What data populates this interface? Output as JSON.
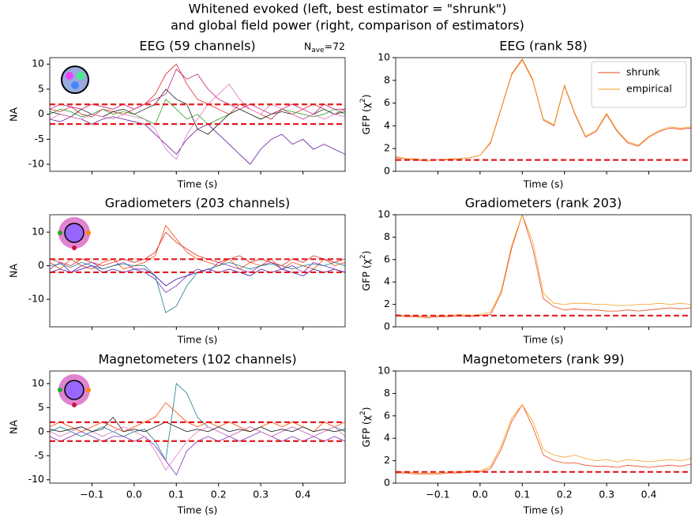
{
  "chart_data": [
    {
      "type": "line",
      "title": "EEG (59 channels)",
      "ylabel": "NA",
      "xlabel": "Time (s)",
      "annotation": {
        "symbol": "N",
        "subscript": "ave",
        "text": "=72"
      },
      "x": [
        -0.2,
        -0.175,
        -0.15,
        -0.125,
        -0.1,
        -0.075,
        -0.05,
        -0.025,
        0,
        0.025,
        0.05,
        0.075,
        0.1,
        0.125,
        0.15,
        0.175,
        0.2,
        0.225,
        0.25,
        0.275,
        0.3,
        0.325,
        0.35,
        0.375,
        0.4,
        0.425,
        0.45,
        0.475,
        0.5
      ],
      "xlim": [
        -0.2,
        0.5
      ],
      "xticks": [
        -0.1,
        0,
        0.1,
        0.2,
        0.3,
        0.4
      ],
      "ylim": [
        -11.4,
        11.3
      ],
      "yticks": [
        -10,
        -5,
        0,
        5,
        10
      ],
      "hlines": [
        1.96,
        -1.96
      ],
      "series": [
        {
          "color": "#d62728",
          "values": [
            1,
            0.5,
            1.5,
            0,
            -0.5,
            1,
            0.5,
            0,
            1,
            2,
            4,
            8,
            10,
            6,
            3,
            2,
            1,
            0,
            2,
            1,
            0,
            -1,
            1,
            0,
            1,
            2,
            1,
            0,
            1
          ]
        },
        {
          "color": "#6a1b9a",
          "values": [
            -1,
            -1.5,
            -0.5,
            -1,
            -2,
            -1,
            -0.5,
            -1,
            -1.5,
            -2,
            -4,
            -6,
            -8,
            -5,
            -3,
            -2,
            -4,
            -6,
            -8,
            -10,
            -7,
            -5,
            -4,
            -6,
            -5,
            -7,
            -6,
            -7,
            -8
          ]
        },
        {
          "color": "#2ca02c",
          "values": [
            0,
            1,
            0.5,
            -0.5,
            0,
            1,
            0,
            0.5,
            0,
            -1,
            -2,
            3,
            1,
            -1,
            0,
            -2,
            -1,
            0,
            1,
            0,
            -1,
            0,
            1,
            0.5,
            0,
            -0.5,
            0,
            1,
            0
          ]
        },
        {
          "color": "#222222",
          "values": [
            0.5,
            0,
            -0.5,
            1,
            0,
            -0.5,
            0.5,
            1,
            0,
            1,
            2,
            5,
            3,
            2,
            -3,
            -4,
            -2,
            0,
            1,
            0,
            -1,
            0,
            0.5,
            0,
            -1,
            0,
            1,
            0,
            0.5
          ]
        },
        {
          "color": "#e377c2",
          "values": [
            -1,
            0,
            -0.5,
            -1,
            0,
            -0.5,
            -1,
            0,
            -0.5,
            -1,
            -3,
            -7,
            -9,
            -4,
            -1,
            2,
            4,
            6,
            3,
            1,
            0,
            2,
            1,
            0,
            -1,
            0,
            -1,
            0,
            -0.5
          ]
        },
        {
          "color": "#c51b7d",
          "values": [
            1,
            2,
            1.5,
            1,
            2,
            1.5,
            1,
            2,
            1,
            2,
            3,
            4,
            9,
            7,
            8,
            5,
            3,
            2,
            1,
            2,
            1,
            0,
            1,
            2,
            1,
            0,
            2,
            1,
            1
          ]
        }
      ]
    },
    {
      "type": "line",
      "title": "EEG (rank 58)",
      "ylabel": {
        "text": "GFP (χ",
        "sup": "2",
        "end": ")"
      },
      "xlabel": "Time (s)",
      "legend": "upper right",
      "x": [
        -0.2,
        -0.175,
        -0.15,
        -0.125,
        -0.1,
        -0.075,
        -0.05,
        -0.025,
        0,
        0.025,
        0.05,
        0.075,
        0.1,
        0.125,
        0.15,
        0.175,
        0.2,
        0.225,
        0.25,
        0.275,
        0.3,
        0.325,
        0.35,
        0.375,
        0.4,
        0.425,
        0.45,
        0.475,
        0.5
      ],
      "xlim": [
        -0.2,
        0.5
      ],
      "xticks": [
        -0.1,
        0,
        0.1,
        0.2,
        0.3,
        0.4
      ],
      "ylim": [
        0,
        10
      ],
      "yticks": [
        0,
        2,
        4,
        6,
        8,
        10
      ],
      "hlines": [
        1
      ],
      "series": [
        {
          "name": "shrunk",
          "color": "#e8481c",
          "values": [
            1.2,
            1.1,
            1.0,
            0.9,
            1.0,
            1.0,
            1.1,
            1.2,
            1.4,
            2.5,
            5.5,
            8.5,
            9.8,
            8.0,
            4.5,
            4.0,
            7.5,
            5.0,
            3.0,
            3.5,
            5.0,
            3.5,
            2.5,
            2.2,
            3.0,
            3.5,
            3.8,
            3.7,
            3.8
          ]
        },
        {
          "name": "empirical",
          "color": "#f5a021",
          "values": [
            1.3,
            1.1,
            1.1,
            0.9,
            1.0,
            1.1,
            1.1,
            1.2,
            1.4,
            2.6,
            5.6,
            8.6,
            9.9,
            8.1,
            4.6,
            4.1,
            7.6,
            5.1,
            3.1,
            3.6,
            5.1,
            3.6,
            2.6,
            2.3,
            3.1,
            3.6,
            3.9,
            3.8,
            3.9
          ]
        }
      ]
    },
    {
      "type": "line",
      "title": "Gradiometers (203 channels)",
      "ylabel": "NA",
      "xlabel": "Time (s)",
      "x": [
        -0.2,
        -0.175,
        -0.15,
        -0.125,
        -0.1,
        -0.075,
        -0.05,
        -0.025,
        0,
        0.025,
        0.05,
        0.075,
        0.1,
        0.125,
        0.15,
        0.175,
        0.2,
        0.225,
        0.25,
        0.275,
        0.3,
        0.325,
        0.35,
        0.375,
        0.4,
        0.425,
        0.45,
        0.475,
        0.5
      ],
      "xlim": [
        -0.2,
        0.5
      ],
      "xticks": [
        -0.1,
        0,
        0.1,
        0.2,
        0.3,
        0.4
      ],
      "ylim": [
        -18.2,
        15.2
      ],
      "yticks": [
        -10,
        0,
        10
      ],
      "hlines": [
        1.96,
        -1.96
      ],
      "series": [
        {
          "color": "#ff4500",
          "values": [
            1,
            -1,
            2,
            0,
            -1,
            1,
            2,
            -1,
            0,
            1,
            3,
            12,
            8,
            4,
            2,
            1,
            0,
            2,
            -1,
            1,
            0,
            2,
            -1,
            1,
            0,
            -1,
            2,
            0,
            1
          ]
        },
        {
          "color": "#7b2cbf",
          "values": [
            -1,
            1,
            -2,
            0,
            1,
            -1,
            0,
            1,
            -1,
            -2,
            -4,
            -8,
            -6,
            -3,
            -1,
            -2,
            1,
            0,
            -1,
            -2,
            0,
            1,
            -1,
            0,
            -2,
            1,
            0,
            -1,
            -2
          ]
        },
        {
          "color": "#1b7c8b",
          "values": [
            0,
            0.5,
            -0.5,
            1,
            0,
            -1,
            0,
            0.5,
            0,
            0,
            -3,
            -14,
            -12,
            -6,
            -2,
            -1,
            0,
            1,
            0,
            -1,
            0,
            0.5,
            0,
            -1,
            0,
            0.5,
            0,
            1,
            0
          ]
        },
        {
          "color": "#d62728",
          "values": [
            2,
            1,
            0,
            2,
            1,
            0,
            1,
            2,
            1,
            2,
            4,
            10,
            7,
            5,
            3,
            2,
            1,
            2,
            3,
            1,
            2,
            1,
            0,
            2,
            1,
            3,
            2,
            1,
            2
          ]
        },
        {
          "color": "#3a0ca3",
          "values": [
            -2,
            -1,
            -2,
            -1,
            0,
            -2,
            -1,
            -2,
            -1,
            -1,
            -3,
            -6,
            -4,
            -3,
            -2,
            -1,
            -2,
            -1,
            -2,
            -3,
            -1,
            -2,
            -1,
            -2,
            -3,
            -1,
            -2,
            -1,
            -2
          ]
        }
      ]
    },
    {
      "type": "line",
      "title": "Gradiometers (rank 203)",
      "ylabel": {
        "text": "GFP (χ",
        "sup": "2",
        "end": ")"
      },
      "xlabel": "Time (s)",
      "x": [
        -0.2,
        -0.175,
        -0.15,
        -0.125,
        -0.1,
        -0.075,
        -0.05,
        -0.025,
        0,
        0.025,
        0.05,
        0.075,
        0.1,
        0.125,
        0.15,
        0.175,
        0.2,
        0.225,
        0.25,
        0.275,
        0.3,
        0.325,
        0.35,
        0.375,
        0.4,
        0.425,
        0.45,
        0.475,
        0.5
      ],
      "xlim": [
        -0.2,
        0.5
      ],
      "xticks": [
        -0.1,
        0,
        0.1,
        0.2,
        0.3,
        0.4
      ],
      "ylim": [
        0,
        10
      ],
      "yticks": [
        0,
        2,
        4,
        6,
        8,
        10
      ],
      "hlines": [
        1
      ],
      "series": [
        {
          "name": "shrunk",
          "color": "#e8481c",
          "values": [
            1.0,
            0.9,
            0.9,
            0.8,
            0.9,
            0.9,
            1.0,
            0.9,
            1.0,
            1.1,
            3.0,
            7.0,
            10.0,
            7.0,
            2.5,
            1.8,
            1.5,
            1.6,
            1.5,
            1.5,
            1.4,
            1.4,
            1.5,
            1.4,
            1.5,
            1.6,
            1.7,
            1.6,
            1.7
          ]
        },
        {
          "name": "empirical",
          "color": "#f5a021",
          "values": [
            1.1,
            1.0,
            1.0,
            0.9,
            1.0,
            1.0,
            1.1,
            1.0,
            1.1,
            1.3,
            3.2,
            7.3,
            10.0,
            7.6,
            3.0,
            2.1,
            2.0,
            2.1,
            2.1,
            2.0,
            2.0,
            1.9,
            1.9,
            2.0,
            2.0,
            2.1,
            2.0,
            2.1,
            2.0
          ]
        }
      ]
    },
    {
      "type": "line",
      "title": "Magnetometers (102 channels)",
      "ylabel": "NA",
      "xlabel": "Time (s)",
      "x": [
        -0.2,
        -0.175,
        -0.15,
        -0.125,
        -0.1,
        -0.075,
        -0.05,
        -0.025,
        0,
        0.025,
        0.05,
        0.075,
        0.1,
        0.125,
        0.15,
        0.175,
        0.2,
        0.225,
        0.25,
        0.275,
        0.3,
        0.325,
        0.35,
        0.375,
        0.4,
        0.425,
        0.45,
        0.475,
        0.5
      ],
      "xlim": [
        -0.2,
        0.5
      ],
      "xticks": [
        {
          "value": -0.1,
          "label": "−0.1"
        },
        {
          "value": 0,
          "label": "0.0"
        },
        0.1,
        0.2,
        0.3,
        0.4
      ],
      "ylim": [
        -10.7,
        12.6
      ],
      "yticks": [
        -10,
        -5,
        0,
        5,
        10
      ],
      "hlines": [
        1.96,
        -1.96
      ],
      "series": [
        {
          "color": "#1b7c8b",
          "values": [
            0,
            1,
            0,
            -1,
            0,
            1,
            0,
            -1,
            0,
            0.5,
            -2,
            -6,
            10,
            8,
            3,
            1,
            0,
            -1,
            0,
            1,
            0,
            -1,
            0,
            1,
            0,
            -1,
            0,
            1,
            0
          ]
        },
        {
          "color": "#ff4500",
          "values": [
            1,
            2,
            1,
            0,
            1,
            2,
            1,
            0,
            1,
            2,
            3,
            6,
            4,
            2,
            1,
            2,
            1,
            2,
            1,
            0,
            1,
            2,
            1,
            2,
            1,
            0,
            2,
            1,
            2
          ]
        },
        {
          "color": "#7b2cbf",
          "values": [
            -1,
            -2,
            -1,
            0,
            -1,
            -2,
            -1,
            -1,
            -2,
            -1,
            -3,
            -6,
            -9,
            -4,
            -2,
            -1,
            -2,
            -1,
            -2,
            -1,
            0,
            -1,
            -2,
            -1,
            -2,
            -1,
            -2,
            -1,
            -2
          ]
        },
        {
          "color": "#e377c2",
          "values": [
            0,
            -1,
            0,
            1,
            0,
            -1,
            0,
            1,
            0,
            -1,
            -4,
            -8,
            -5,
            -2,
            0,
            1,
            0,
            -1,
            0,
            1,
            0,
            -1,
            0,
            1,
            0,
            -1,
            0,
            1,
            -1
          ]
        },
        {
          "color": "#222222",
          "values": [
            0.5,
            0,
            0.5,
            1,
            0,
            0.5,
            3,
            0,
            0.5,
            0,
            1,
            2,
            1,
            0,
            0.5,
            0,
            1,
            0,
            0.5,
            0,
            1,
            0,
            0.5,
            0,
            1,
            0,
            0.5,
            0,
            0.5
          ]
        }
      ]
    },
    {
      "type": "line",
      "title": "Magnetometers (rank 99)",
      "ylabel": {
        "text": "GFP (χ",
        "sup": "2",
        "end": ")"
      },
      "xlabel": "Time (s)",
      "x": [
        -0.2,
        -0.175,
        -0.15,
        -0.125,
        -0.1,
        -0.075,
        -0.05,
        -0.025,
        0,
        0.025,
        0.05,
        0.075,
        0.1,
        0.125,
        0.15,
        0.175,
        0.2,
        0.225,
        0.25,
        0.275,
        0.3,
        0.325,
        0.35,
        0.375,
        0.4,
        0.425,
        0.45,
        0.475,
        0.5
      ],
      "xlim": [
        -0.2,
        0.5
      ],
      "xticks": [
        {
          "value": -0.1,
          "label": "−0.1"
        },
        {
          "value": 0,
          "label": "0.0"
        },
        0.1,
        0.2,
        0.3,
        0.4
      ],
      "ylim": [
        0,
        10
      ],
      "yticks": [
        0,
        2,
        4,
        6,
        8,
        10
      ],
      "hlines": [
        1
      ],
      "series": [
        {
          "name": "shrunk",
          "color": "#e8481c",
          "values": [
            0.9,
            0.9,
            0.8,
            0.8,
            0.8,
            0.9,
            0.9,
            1.0,
            1.0,
            1.3,
            3.0,
            5.5,
            7.0,
            5.0,
            2.5,
            2.0,
            1.8,
            1.8,
            1.6,
            1.5,
            1.5,
            1.4,
            1.6,
            1.5,
            1.4,
            1.5,
            1.6,
            1.5,
            1.7
          ]
        },
        {
          "name": "empirical",
          "color": "#f5a021",
          "values": [
            1.0,
            1.0,
            0.9,
            0.9,
            0.9,
            1.0,
            1.0,
            1.1,
            1.1,
            1.5,
            3.3,
            5.8,
            7.0,
            5.5,
            3.0,
            2.5,
            2.3,
            2.5,
            2.2,
            2.0,
            2.1,
            1.9,
            2.1,
            2.0,
            1.9,
            2.0,
            2.1,
            2.0,
            2.2
          ]
        }
      ]
    }
  ],
  "title": [
    "Whitened evoked (left, best estimator = \"shrunk\")",
    "and global field power (right, comparison of estimators)"
  ]
}
